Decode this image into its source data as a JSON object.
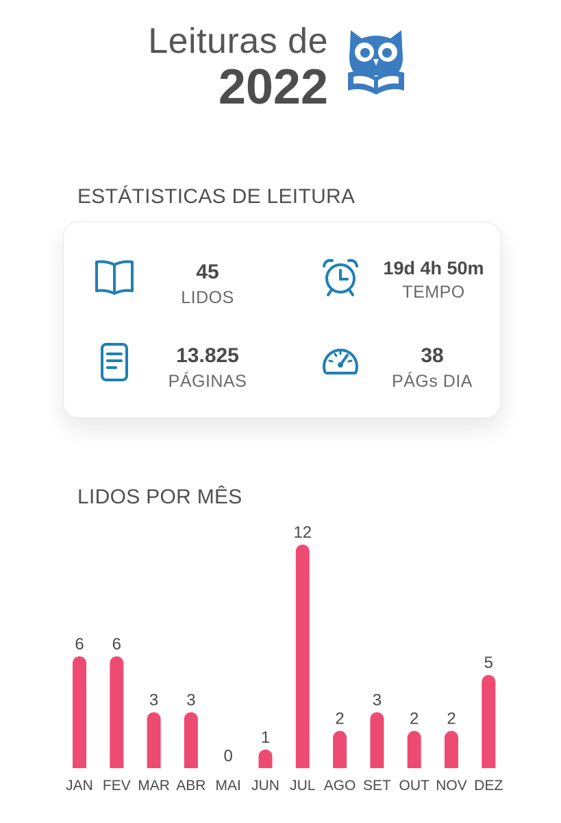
{
  "header": {
    "title_line1": "Leituras de",
    "title_line2": "2022",
    "logo_icon": "owl-reading-book-icon",
    "brand_color": "#3b7cc0"
  },
  "stats": {
    "heading": "ESTÁTISTICAS DE LEITURA",
    "items": [
      {
        "icon": "open-book-icon",
        "value": "45",
        "label": "LIDOS"
      },
      {
        "icon": "alarm-clock-icon",
        "value": "19d 4h 50m",
        "label": "TEMPO"
      },
      {
        "icon": "document-icon",
        "value": "13.825",
        "label": "PÁGINAS"
      },
      {
        "icon": "speedometer-icon",
        "value": "38",
        "label": "PÁGs DIA"
      }
    ],
    "icon_color": "#1f7fb5"
  },
  "chart_heading": "LIDOS POR MÊS",
  "chart_data": {
    "type": "bar",
    "categories": [
      "JAN",
      "FEV",
      "MAR",
      "ABR",
      "MAI",
      "JUN",
      "JUL",
      "AGO",
      "SET",
      "OUT",
      "NOV",
      "DEZ"
    ],
    "values": [
      6,
      6,
      3,
      3,
      0,
      1,
      12,
      2,
      3,
      2,
      2,
      5
    ],
    "bar_color": "#ee4b72",
    "ylim": [
      0,
      12
    ],
    "grid": false,
    "title": "LIDOS POR MÊS"
  }
}
